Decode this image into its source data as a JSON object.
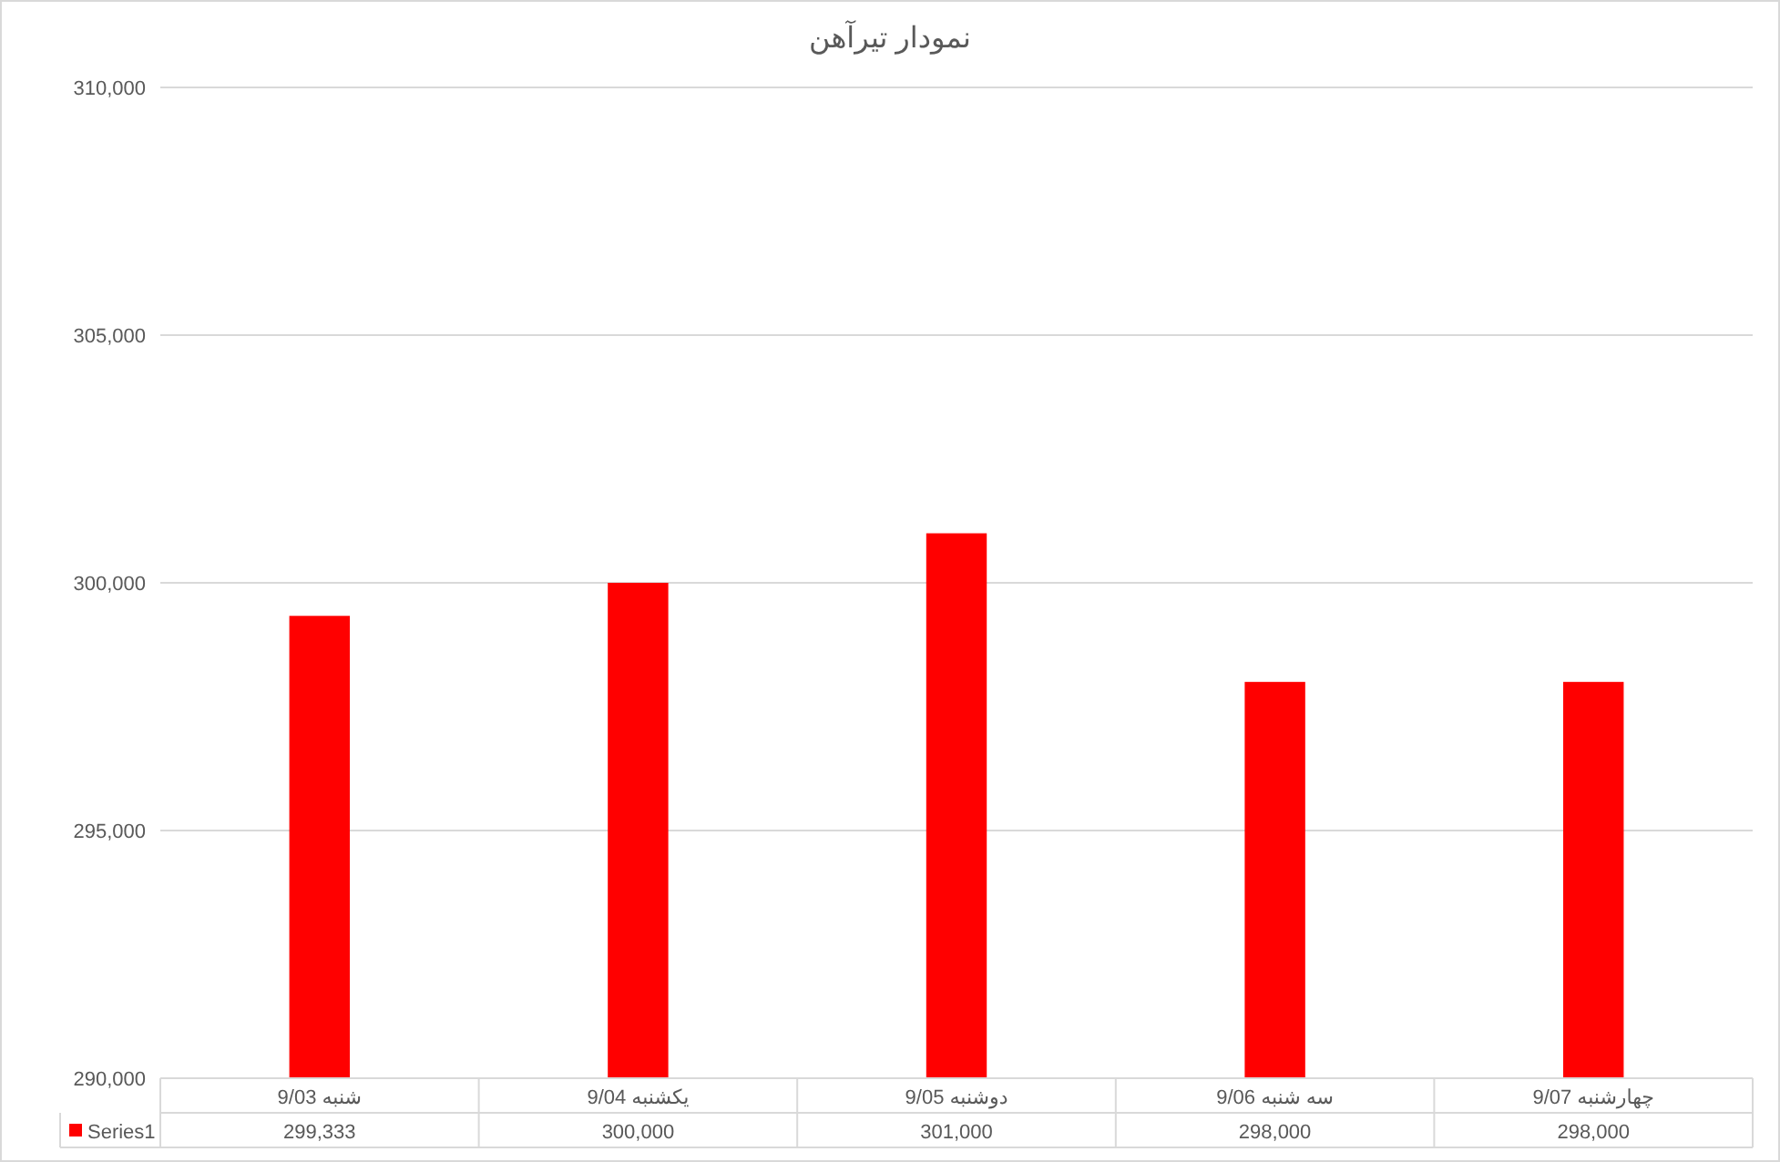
{
  "chart_data": {
    "type": "bar",
    "title": "نمودار تیرآهن",
    "categories": [
      "9/03 شنبه",
      "9/04 یکشنبه",
      "9/05 دوشنبه",
      "9/06 سه شنبه",
      "9/07 چهارشنبه"
    ],
    "series": [
      {
        "name": "Series1",
        "color": "#ff0000",
        "values": [
          299333,
          300000,
          301000,
          298000,
          298000
        ],
        "value_labels": [
          "299,333",
          "300,000",
          "301,000",
          "298,000",
          "298,000"
        ]
      }
    ],
    "ylim": [
      290000,
      310000
    ],
    "yticks": [
      {
        "value": 290000,
        "label": "290,000"
      },
      {
        "value": 295000,
        "label": "295,000"
      },
      {
        "value": 300000,
        "label": "300,000"
      },
      {
        "value": 305000,
        "label": "305,000"
      },
      {
        "value": 310000,
        "label": "310,000"
      }
    ],
    "grid": "y",
    "legend": "bottom"
  }
}
